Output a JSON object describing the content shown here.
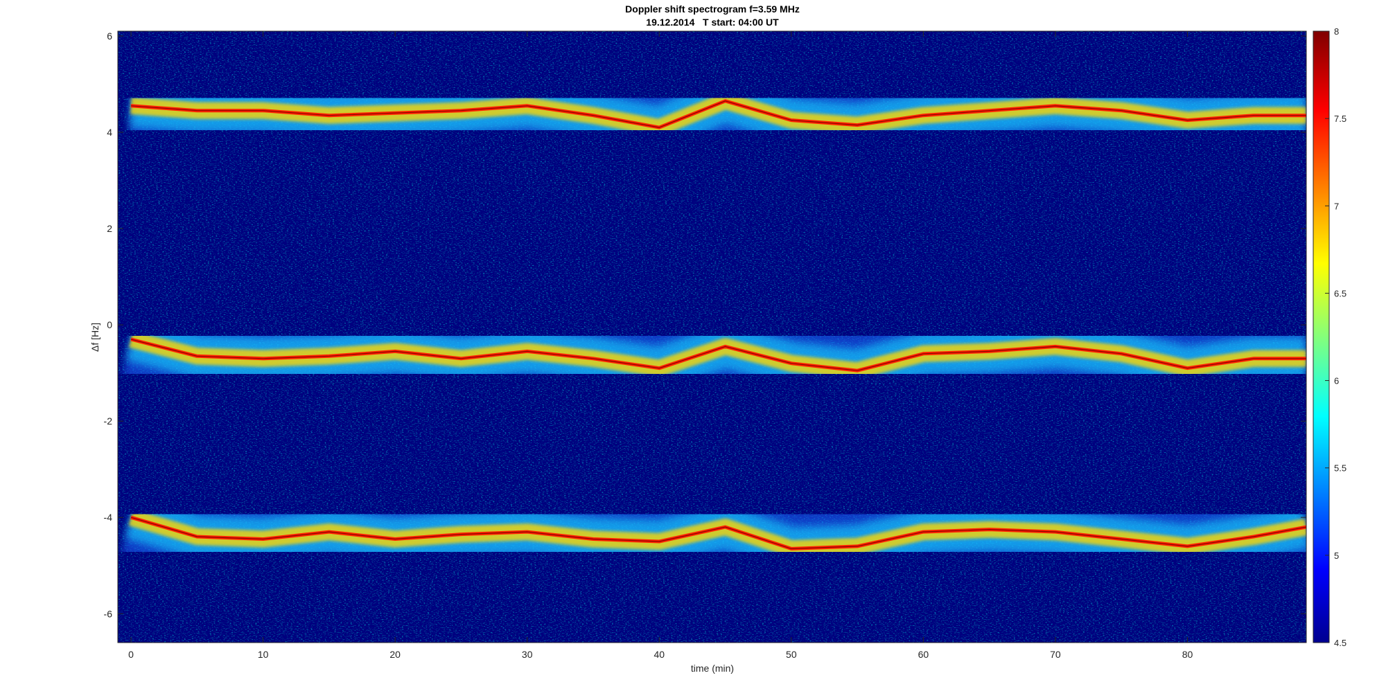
{
  "chart_data": {
    "type": "heatmap",
    "title": "Doppler shift spectrogram f=3.59 MHz",
    "subtitle": "19.12.2014   T start: 04:00 UT",
    "xlabel": "time (min)",
    "ylabel": "Δf [Hz]",
    "xlim": [
      -1,
      89
    ],
    "ylim": [
      -6.6,
      6.1
    ],
    "x_ticks": [
      0,
      10,
      20,
      30,
      40,
      50,
      60,
      70,
      80
    ],
    "y_ticks": [
      6,
      4,
      2,
      0,
      -2,
      -4,
      -6
    ],
    "colorbar": {
      "colormap": "jet",
      "range": [
        4.5,
        8
      ],
      "ticks": [
        8,
        7.5,
        7,
        6.5,
        6,
        5.5,
        5,
        4.5
      ]
    },
    "grid": false,
    "series": [
      {
        "x": [
          0,
          5,
          10,
          15,
          20,
          25,
          30,
          35,
          40,
          45,
          50,
          55,
          60,
          65,
          70,
          75,
          80,
          85,
          89
        ],
        "y": [
          4.55,
          4.45,
          4.45,
          4.35,
          4.4,
          4.45,
          4.55,
          4.35,
          4.1,
          4.65,
          4.25,
          4.15,
          4.35,
          4.45,
          4.55,
          4.45,
          4.25,
          4.35,
          4.35
        ]
      },
      {
        "x": [
          0,
          5,
          10,
          15,
          20,
          25,
          30,
          35,
          40,
          45,
          50,
          55,
          60,
          65,
          70,
          75,
          80,
          85,
          89
        ],
        "y": [
          -0.3,
          -0.65,
          -0.7,
          -0.65,
          -0.55,
          -0.7,
          -0.55,
          -0.7,
          -0.9,
          -0.45,
          -0.8,
          -0.95,
          -0.6,
          -0.55,
          -0.45,
          -0.6,
          -0.9,
          -0.7,
          -0.7
        ]
      },
      {
        "x": [
          0,
          5,
          10,
          15,
          20,
          25,
          30,
          35,
          40,
          45,
          50,
          55,
          60,
          65,
          70,
          75,
          80,
          85,
          89
        ],
        "y": [
          -4.0,
          -4.4,
          -4.45,
          -4.3,
          -4.45,
          -4.35,
          -4.3,
          -4.45,
          -4.5,
          -4.2,
          -4.65,
          -4.6,
          -4.3,
          -4.25,
          -4.3,
          -4.45,
          -4.6,
          -4.4,
          -4.2
        ]
      }
    ]
  }
}
